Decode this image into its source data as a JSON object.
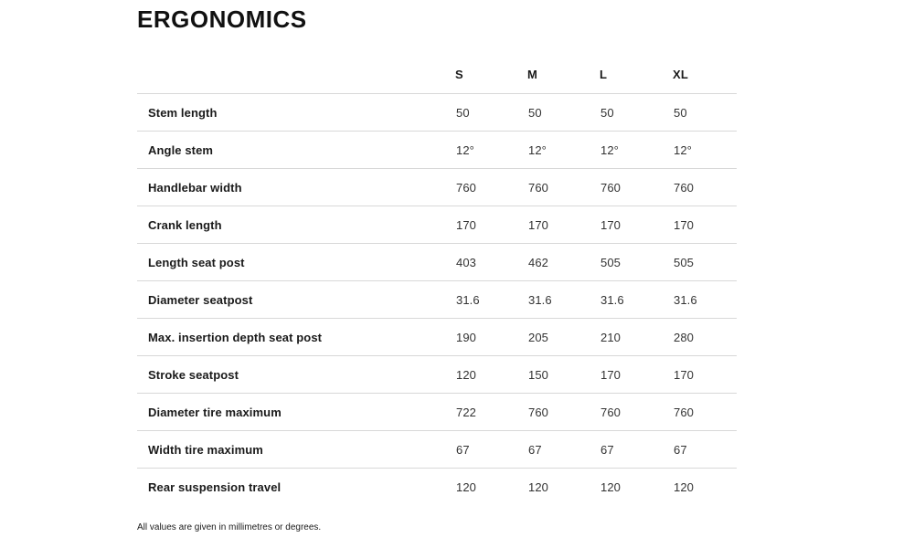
{
  "page": {
    "title": "ERGONOMICS",
    "footnote": "All values are given in millimetres or degrees."
  },
  "table": {
    "columns": [
      "S",
      "M",
      "L",
      "XL"
    ],
    "rows": [
      {
        "label": "Stem length",
        "values": [
          "50",
          "50",
          "50",
          "50"
        ]
      },
      {
        "label": "Angle stem",
        "values": [
          "12°",
          "12°",
          "12°",
          "12°"
        ]
      },
      {
        "label": "Handlebar width",
        "values": [
          "760",
          "760",
          "760",
          "760"
        ]
      },
      {
        "label": "Crank length",
        "values": [
          "170",
          "170",
          "170",
          "170"
        ]
      },
      {
        "label": "Length seat post",
        "values": [
          "403",
          "462",
          "505",
          "505"
        ]
      },
      {
        "label": "Diameter seatpost",
        "values": [
          "31.6",
          "31.6",
          "31.6",
          "31.6"
        ]
      },
      {
        "label": "Max. insertion depth seat post",
        "values": [
          "190",
          "205",
          "210",
          "280"
        ]
      },
      {
        "label": "Stroke seatpost",
        "values": [
          "120",
          "150",
          "170",
          "170"
        ]
      },
      {
        "label": "Diameter tire maximum",
        "values": [
          "722",
          "760",
          "760",
          "760"
        ]
      },
      {
        "label": "Width tire maximum",
        "values": [
          "67",
          "67",
          "67",
          "67"
        ]
      },
      {
        "label": "Rear suspension travel",
        "values": [
          "120",
          "120",
          "120",
          "120"
        ]
      }
    ]
  },
  "colors": {
    "title_text": "#111111",
    "label_text": "#1a1a1a",
    "value_text": "#333333",
    "divider": "#d8d8d8",
    "background": "#ffffff"
  }
}
